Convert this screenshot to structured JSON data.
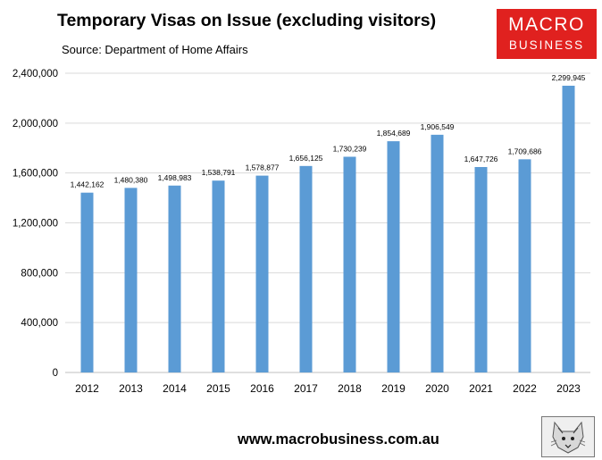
{
  "title": "Temporary Visas on Issue (excluding visitors)",
  "subtitle": "Source: Department of Home Affairs",
  "logo": {
    "line1": "MACRO",
    "line2": "BUSINESS"
  },
  "footer": "www.macrobusiness.com.au",
  "colors": {
    "bar": "#5b9bd5",
    "gridline": "#d9d9d9",
    "logo_bg": "#e0211f"
  },
  "chart_data": {
    "type": "bar",
    "title": "Temporary Visas on Issue (excluding visitors)",
    "subtitle": "Source: Department of Home Affairs",
    "categories": [
      "2012",
      "2013",
      "2014",
      "2015",
      "2016",
      "2017",
      "2018",
      "2019",
      "2020",
      "2021",
      "2022",
      "2023"
    ],
    "values": [
      1442162,
      1480380,
      1498983,
      1538791,
      1578877,
      1656125,
      1730239,
      1854689,
      1906549,
      1647726,
      1709686,
      2299945
    ],
    "data_labels": [
      "1,442,162",
      "1,480,380",
      "1,498,983",
      "1,538,791",
      "1,578,877",
      "1,656,125",
      "1,730,239",
      "1,854,689",
      "1,906,549",
      "1,647,726",
      "1,709,686",
      "2,299,945"
    ],
    "yticks": [
      0,
      400000,
      800000,
      1200000,
      1600000,
      2000000,
      2400000
    ],
    "ytick_labels": [
      "0",
      "400,000",
      "800,000",
      "1,200,000",
      "1,600,000",
      "2,000,000",
      "2,400,000"
    ],
    "ylim": [
      0,
      2400000
    ],
    "xlabel": "",
    "ylabel": "",
    "grid": true,
    "legend": "none"
  }
}
